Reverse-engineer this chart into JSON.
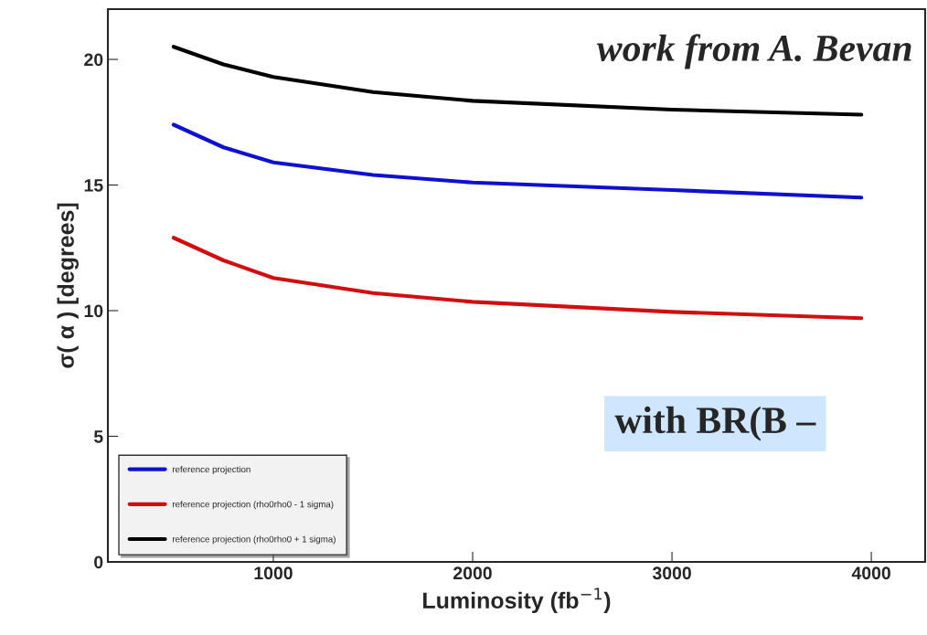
{
  "chart_data": {
    "type": "line",
    "xlabel": "Luminosity (fb$^{−1}$)",
    "ylabel": "σ( α ) [degrees]",
    "x": [
      500,
      750,
      1000,
      1500,
      2000,
      3000,
      3950
    ],
    "series": [
      {
        "name": "reference projection",
        "color": "#1010d0",
        "values": [
          17.4,
          16.5,
          15.9,
          15.4,
          15.1,
          14.8,
          14.5
        ]
      },
      {
        "name": "reference projection (rho0rho0 - 1 sigma)",
        "color": "#d01010",
        "values": [
          12.9,
          12.0,
          11.3,
          10.7,
          10.35,
          9.95,
          9.7
        ]
      },
      {
        "name": "reference projection (rho0rho0 + 1 sigma)",
        "color": "#000000",
        "values": [
          20.5,
          19.8,
          19.3,
          18.7,
          18.35,
          18.0,
          17.8
        ]
      }
    ],
    "xlim": [
      170,
      4270
    ],
    "ylim": [
      0,
      22
    ],
    "xticks": [
      1000,
      2000,
      3000,
      4000
    ],
    "yticks": [
      0,
      5,
      10,
      15,
      20
    ],
    "grid": false,
    "legend": "bottom left",
    "marker": "none",
    "line_style": "solid",
    "annotations": [
      "work from A. Bevan",
      "with BR(B –"
    ]
  }
}
